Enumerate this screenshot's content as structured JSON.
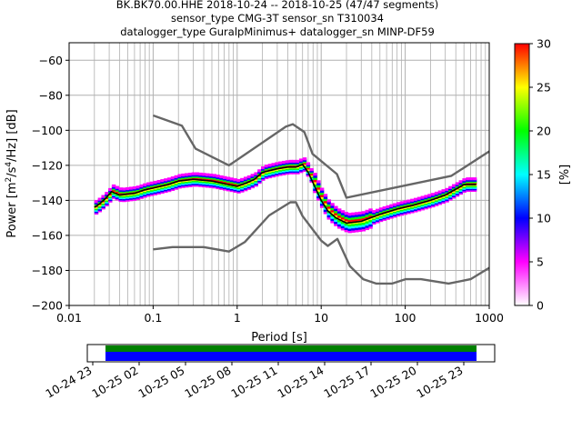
{
  "header": {
    "title_lines": [
      "BK.BK70.00.HHE   2018-10-24 -- 2018-10-25  (47/47 segments)",
      "sensor_type CMG-3T sensor_sn T310034",
      "datalogger_type GuralpMinimus+ datalogger_sn MINP-DF59"
    ]
  },
  "chart_data": [
    {
      "type": "heatmap",
      "xlabel": "Period [s]",
      "ylabel": "Power [m2/s4/Hz] [dB]",
      "ylabel_parts": [
        "Power [m",
        "2",
        "/s",
        "4",
        "/Hz] [dB]"
      ],
      "xscale": "log",
      "xlim": [
        0.01,
        1000
      ],
      "ylim": [
        -200,
        -50
      ],
      "xticks": [
        0.01,
        0.1,
        1,
        10,
        100,
        1000
      ],
      "xtick_labels": [
        "0.01",
        "0.1",
        "1",
        "10",
        "100",
        "1000"
      ],
      "yticks": [
        -200,
        -180,
        -160,
        -140,
        -120,
        -100,
        -80,
        -60
      ],
      "ytick_labels": [
        "−200",
        "−180",
        "−160",
        "−140",
        "−120",
        "−100",
        "−80",
        "−60"
      ],
      "grid": true,
      "colorbar": {
        "label": "[%]",
        "range": [
          0,
          30
        ],
        "ticks": [
          0,
          5,
          10,
          15,
          20,
          25,
          30
        ],
        "tick_labels": [
          "0",
          "5",
          "10",
          "15",
          "20",
          "25",
          "30"
        ],
        "colors": [
          "#ffffff",
          "#ff00ff",
          "#0000ff",
          "#00ffff",
          "#00ff00",
          "#ffff00",
          "#ff0000"
        ]
      },
      "series": [
        {
          "role": "high-noise-model",
          "color": "#666666",
          "points": [
            [
              0.1,
              -91.5
            ],
            [
              0.22,
              -97.4
            ],
            [
              0.32,
              -110.5
            ],
            [
              0.8,
              -120
            ],
            [
              3.8,
              -97.9
            ],
            [
              4.6,
              -96.5
            ],
            [
              6.3,
              -101
            ],
            [
              7.9,
              -113.5
            ],
            [
              15.4,
              -125
            ],
            [
              20,
              -138.5
            ],
            [
              354.8,
              -126
            ],
            [
              1000,
              -112
            ]
          ]
        },
        {
          "role": "low-noise-model",
          "color": "#666666",
          "points": [
            [
              0.1,
              -168
            ],
            [
              0.17,
              -166.7
            ],
            [
              0.4,
              -166.7
            ],
            [
              0.8,
              -169.2
            ],
            [
              1.24,
              -163.7
            ],
            [
              2.4,
              -148.6
            ],
            [
              4.3,
              -141.1
            ],
            [
              5,
              -141.1
            ],
            [
              6,
              -149
            ],
            [
              10,
              -163
            ],
            [
              12,
              -166
            ],
            [
              15.6,
              -162
            ],
            [
              21.9,
              -177.5
            ],
            [
              31.6,
              -185
            ],
            [
              45,
              -187.5
            ],
            [
              70,
              -187.5
            ],
            [
              101,
              -185
            ],
            [
              154,
              -185
            ],
            [
              328,
              -187.5
            ],
            [
              600,
              -185
            ],
            [
              1000,
              -178.5
            ]
          ]
        },
        {
          "role": "mode",
          "color": "#000000",
          "points": [
            [
              0.02,
              -144
            ],
            [
              0.023,
              -142
            ],
            [
              0.027,
              -139
            ],
            [
              0.032,
              -135
            ],
            [
              0.04,
              -137
            ],
            [
              0.06,
              -136
            ],
            [
              0.08,
              -134
            ],
            [
              0.1,
              -133
            ],
            [
              0.15,
              -131
            ],
            [
              0.2,
              -129
            ],
            [
              0.3,
              -128
            ],
            [
              0.5,
              -129
            ],
            [
              0.8,
              -131
            ],
            [
              1,
              -132
            ],
            [
              1.3,
              -130
            ],
            [
              1.6,
              -128
            ],
            [
              2,
              -124
            ],
            [
              3,
              -122
            ],
            [
              4,
              -121
            ],
            [
              5,
              -121
            ],
            [
              6,
              -119.5
            ],
            [
              7,
              -124
            ],
            [
              8,
              -130
            ],
            [
              10,
              -140
            ],
            [
              12,
              -146
            ],
            [
              15,
              -150
            ],
            [
              20,
              -153
            ],
            [
              30,
              -152
            ],
            [
              50,
              -148
            ],
            [
              80,
              -145
            ],
            [
              120,
              -143
            ],
            [
              200,
              -140
            ],
            [
              300,
              -137
            ],
            [
              500,
              -131
            ],
            [
              700,
              -131
            ]
          ]
        }
      ]
    },
    {
      "type": "bar",
      "role": "data-availability",
      "xticks": [
        "10-24 23",
        "10-25 02",
        "10-25 05",
        "10-25 08",
        "10-25 11",
        "10-25 14",
        "10-25 17",
        "10-25 20",
        "10-25 23"
      ],
      "series": [
        {
          "name": "",
          "color": "#008000",
          "start": "10-25 00:00",
          "end": "10-26 00:00"
        },
        {
          "name": "",
          "color": "#0000ff",
          "start": "10-25 00:00",
          "end": "10-26 00:00"
        }
      ]
    }
  ]
}
